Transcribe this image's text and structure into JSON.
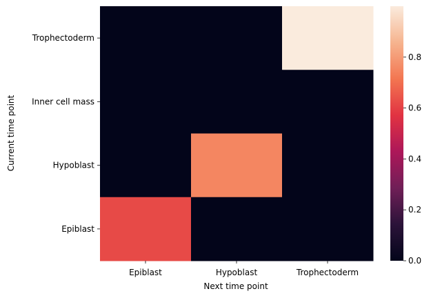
{
  "chart_data": {
    "type": "heatmap",
    "title": "",
    "xlabel": "Next time point",
    "ylabel": "Current time point",
    "x_categories": [
      "Epiblast",
      "Hypoblast",
      "Trophectoderm"
    ],
    "y_categories": [
      "Trophectoderm",
      "Inner cell mass",
      "Hypoblast",
      "Epiblast"
    ],
    "values": [
      [
        0.0,
        0.0,
        1.0
      ],
      [
        0.0,
        0.0,
        0.0
      ],
      [
        0.0,
        0.75,
        0.0
      ],
      [
        0.62,
        0.0,
        0.0
      ]
    ],
    "colorbar": {
      "vmin": 0.0,
      "vmax": 1.0,
      "ticks": [
        0.0,
        0.2,
        0.4,
        0.6,
        0.8
      ],
      "tick_labels": [
        "0.0",
        "0.2",
        "0.4",
        "0.6",
        "0.8"
      ],
      "colormap": "rocket",
      "colormap_stops": [
        "#03051a",
        "#2b1339",
        "#701f57",
        "#ad1759",
        "#e13342",
        "#f37651",
        "#f6b48f",
        "#faebdd"
      ]
    },
    "grid": false,
    "legend": "colorbar-right"
  }
}
